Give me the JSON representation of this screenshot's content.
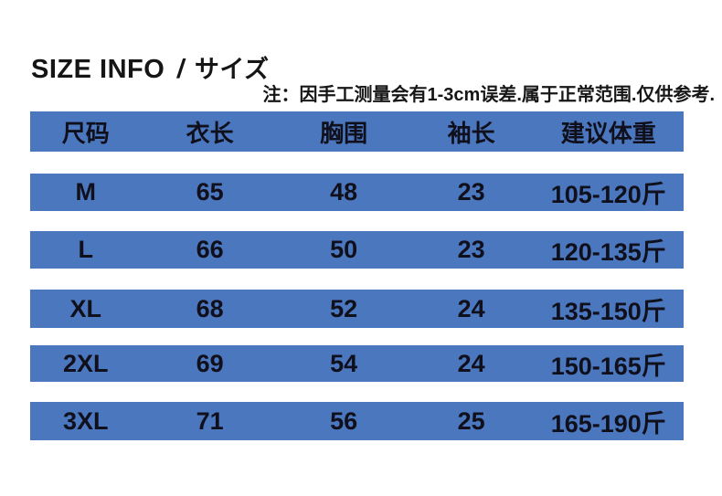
{
  "header": {
    "title_en": "SIZE INFO",
    "title_sep": "/",
    "title_jp": "サイズ",
    "note": "注：因手工测量会有1-3cm误差.属于正常范围.仅供参考."
  },
  "colors": {
    "row_blue": "#4b77bf",
    "text": "#10101c",
    "background": "#ffffff"
  },
  "chart_data": {
    "type": "table",
    "title": "SIZE INFO / サイズ",
    "note": "注：因手工测量会有1-3cm误差.属于正常范围.仅供参考.",
    "columns": [
      "尺码",
      "衣长",
      "胸围",
      "袖长",
      "建议体重"
    ],
    "rows": [
      [
        "M",
        "65",
        "48",
        "23",
        "105-120斤"
      ],
      [
        "L",
        "66",
        "50",
        "23",
        "120-135斤"
      ],
      [
        "XL",
        "68",
        "52",
        "24",
        "135-150斤"
      ],
      [
        "2XL",
        "69",
        "54",
        "24",
        "150-165斤"
      ],
      [
        "3XL",
        "71",
        "56",
        "25",
        "165-190斤"
      ]
    ],
    "layout": {
      "legend": "none",
      "grid": "off",
      "row_style": "solid blue bars separated by white gaps"
    }
  }
}
